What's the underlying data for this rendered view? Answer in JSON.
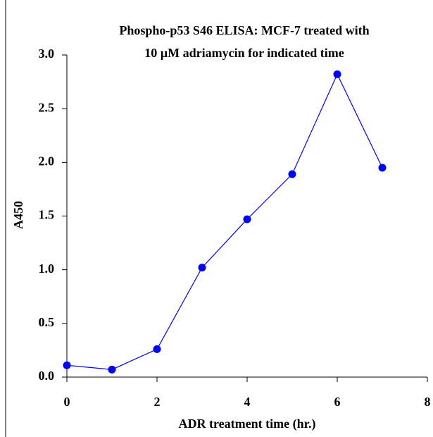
{
  "chart_data": {
    "type": "line",
    "title": [
      "Phospho-p53 S46 ELISA: MCF-7 treated with",
      "10 µM adriamycin for indicated time"
    ],
    "x_label": "ADR treatment time (hr.)",
    "y_label": "A450",
    "x": [
      0,
      1,
      2,
      3,
      4,
      5,
      6,
      7
    ],
    "series": [
      {
        "name": "A450",
        "color": "#0000ff",
        "values": [
          0.11,
          0.07,
          0.26,
          1.02,
          1.47,
          1.89,
          2.82,
          1.95
        ]
      }
    ],
    "xlim": [
      0,
      8
    ],
    "xticks": [
      0,
      2,
      4,
      6,
      8
    ],
    "ylim": [
      0,
      3
    ],
    "yticks": [
      {
        "value": 0,
        "label": "0.0"
      },
      0.5,
      {
        "value": 1,
        "label": "1.0"
      },
      1.5,
      {
        "value": 2,
        "label": "2.0"
      },
      2.5,
      {
        "value": 3,
        "label": "3.0"
      }
    ],
    "grid": false,
    "legend": false
  }
}
